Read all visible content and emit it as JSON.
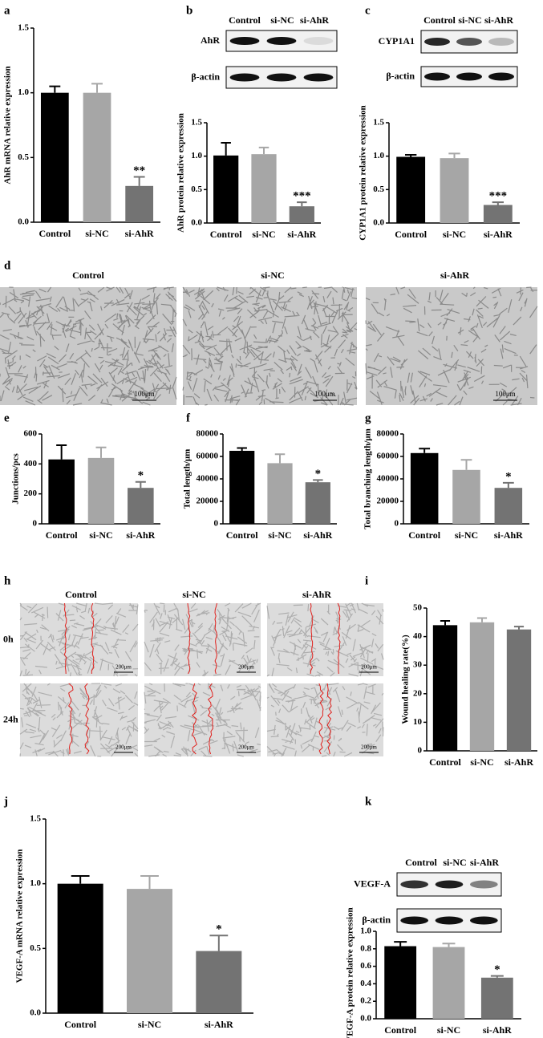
{
  "panels": [
    "a",
    "b",
    "c",
    "d",
    "e",
    "f",
    "g",
    "h",
    "i",
    "j",
    "k"
  ],
  "blots": [
    {
      "columns": [
        "Control",
        "si-NC",
        "si-AhR"
      ],
      "rows": [
        "AhR",
        "β-actin"
      ]
    },
    {
      "columns": [
        "Control",
        "si-NC",
        "si-AhR"
      ],
      "rows": [
        "CYP1A1",
        "β-actin"
      ]
    },
    {
      "columns": [
        "Control",
        "si-NC",
        "si-AhR"
      ],
      "rows": [
        "VEGF-A",
        "β-actin"
      ]
    }
  ],
  "tube_formation": {
    "columns": [
      "Control",
      "si-NC",
      "si-AhR"
    ],
    "scale_bar": "100μm"
  },
  "wound_healing": {
    "columns": [
      "Control",
      "si-NC",
      "si-AhR"
    ],
    "rows": [
      "0h",
      "24h"
    ],
    "scale_bar": "200μm"
  },
  "chart_data": [
    {
      "type": "bar",
      "y_label": "AhR mRNA relative expression",
      "categories": [
        "Control",
        "si-NC",
        "si-AhR"
      ],
      "values": [
        1.0,
        1.0,
        0.28
      ],
      "errors": [
        0.05,
        0.07,
        0.07
      ],
      "annotations": [
        null,
        null,
        "**"
      ],
      "colors": [
        "#000000",
        "#a6a6a6",
        "#737373"
      ],
      "ylim": [
        0,
        1.5
      ],
      "yticks": [
        {
          "value": 0,
          "label": "0.0"
        },
        0.5,
        {
          "value": 1,
          "label": "1.0"
        },
        1.5
      ]
    },
    {
      "type": "bar",
      "y_label": "AhR protein relative expression",
      "categories": [
        "Control",
        "si-NC",
        "si-AhR"
      ],
      "values": [
        1.01,
        1.03,
        0.25
      ],
      "errors": [
        0.19,
        0.1,
        0.06
      ],
      "annotations": [
        null,
        null,
        "***"
      ],
      "colors": [
        "#000000",
        "#a6a6a6",
        "#737373"
      ],
      "ylim": [
        0,
        1.5
      ],
      "yticks": [
        {
          "value": 0,
          "label": "0.0"
        },
        0.5,
        {
          "value": 1,
          "label": "1.0"
        },
        1.5
      ]
    },
    {
      "type": "bar",
      "y_label": "CYP1A1 protein relative expression",
      "categories": [
        "Control",
        "si-NC",
        "si-AhR"
      ],
      "values": [
        0.99,
        0.97,
        0.27
      ],
      "errors": [
        0.03,
        0.07,
        0.04
      ],
      "annotations": [
        null,
        null,
        "***"
      ],
      "colors": [
        "#000000",
        "#a6a6a6",
        "#737373"
      ],
      "ylim": [
        0,
        1.5
      ],
      "yticks": [
        {
          "value": 0,
          "label": "0.0"
        },
        0.5,
        {
          "value": 1,
          "label": "1.0"
        },
        1.5
      ]
    },
    {
      "type": "bar",
      "y_label": "Junctions/pcs",
      "categories": [
        "Control",
        "si-NC",
        "si-AhR"
      ],
      "values": [
        430,
        440,
        240
      ],
      "errors": [
        95,
        70,
        40
      ],
      "annotations": [
        null,
        null,
        "*"
      ],
      "colors": [
        "#000000",
        "#a6a6a6",
        "#737373"
      ],
      "ylim": [
        0,
        600
      ],
      "yticks": [
        0,
        200,
        400,
        600
      ]
    },
    {
      "type": "bar",
      "y_label": "Total length/μm",
      "categories": [
        "Control",
        "si-NC",
        "si-AhR"
      ],
      "values": [
        65000,
        54000,
        37000
      ],
      "errors": [
        2500,
        8000,
        2000
      ],
      "annotations": [
        null,
        null,
        "*"
      ],
      "colors": [
        "#000000",
        "#a6a6a6",
        "#737373"
      ],
      "ylim": [
        0,
        80000
      ],
      "yticks": [
        0,
        20000,
        40000,
        60000,
        80000
      ]
    },
    {
      "type": "bar",
      "y_label": "Total branching length/μm",
      "categories": [
        "Control",
        "si-NC",
        "si-AhR"
      ],
      "values": [
        63000,
        48000,
        32000
      ],
      "errors": [
        4000,
        9000,
        4500
      ],
      "annotations": [
        null,
        null,
        "*"
      ],
      "colors": [
        "#000000",
        "#a6a6a6",
        "#737373"
      ],
      "ylim": [
        0,
        80000
      ],
      "yticks": [
        0,
        20000,
        40000,
        60000,
        80000
      ]
    },
    {
      "type": "bar",
      "y_label": "Wound healing rate(%)",
      "categories": [
        "Control",
        "si-NC",
        "si-AhR"
      ],
      "values": [
        44,
        45,
        42.5
      ],
      "errors": [
        1.5,
        1.5,
        1
      ],
      "annotations": [
        null,
        null,
        null
      ],
      "colors": [
        "#000000",
        "#a6a6a6",
        "#737373"
      ],
      "ylim": [
        0,
        50
      ],
      "yticks": [
        0,
        10,
        20,
        30,
        40,
        50
      ]
    },
    {
      "type": "bar",
      "y_label": "VEGF-A mRNA relative expression",
      "categories": [
        "Control",
        "si-NC",
        "si-AhR"
      ],
      "values": [
        1.0,
        0.96,
        0.48
      ],
      "errors": [
        0.06,
        0.1,
        0.12
      ],
      "annotations": [
        null,
        null,
        "*"
      ],
      "colors": [
        "#000000",
        "#a6a6a6",
        "#737373"
      ],
      "ylim": [
        0,
        1.5
      ],
      "yticks": [
        {
          "value": 0,
          "label": "0.0"
        },
        0.5,
        {
          "value": 1,
          "label": "1.0"
        },
        1.5
      ]
    },
    {
      "type": "bar",
      "y_label": "VEGF-A protein relative expression",
      "categories": [
        "Control",
        "si-NC",
        "si-AhR"
      ],
      "values": [
        0.83,
        0.82,
        0.47
      ],
      "errors": [
        0.05,
        0.04,
        0.02
      ],
      "annotations": [
        null,
        null,
        "*"
      ],
      "colors": [
        "#000000",
        "#a6a6a6",
        "#737373"
      ],
      "ylim": [
        0,
        1
      ],
      "yticks": [
        {
          "value": 0,
          "label": "0.0"
        },
        0.2,
        0.4,
        0.6,
        0.8,
        {
          "value": 1,
          "label": "1.0"
        }
      ]
    }
  ]
}
